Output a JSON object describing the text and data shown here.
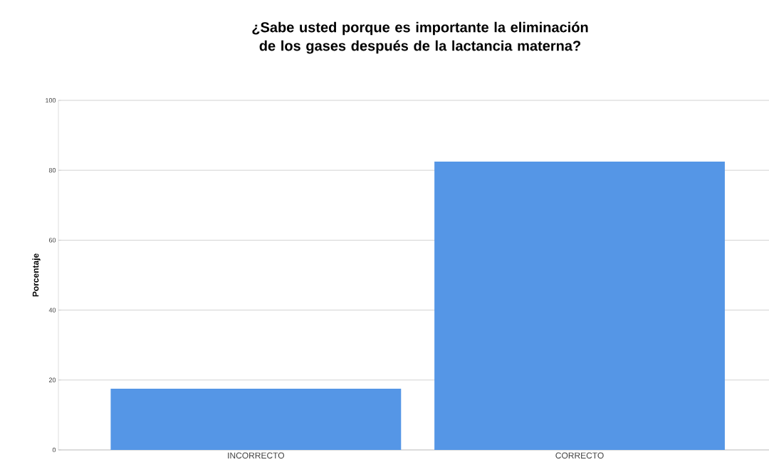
{
  "chart_data": {
    "type": "bar",
    "title": "¿Sabe usted porque es importante la eliminación de los gases después de la lactancia materna?",
    "ylabel": "Porcentaje",
    "categories": [
      "INCORRECTO",
      "CORRECTO"
    ],
    "values": [
      17.5,
      82.5
    ],
    "color": "#5596e6",
    "ylim": [
      0,
      100
    ],
    "yticks": [
      0,
      20,
      40,
      60,
      80,
      100
    ],
    "grid": "y"
  }
}
